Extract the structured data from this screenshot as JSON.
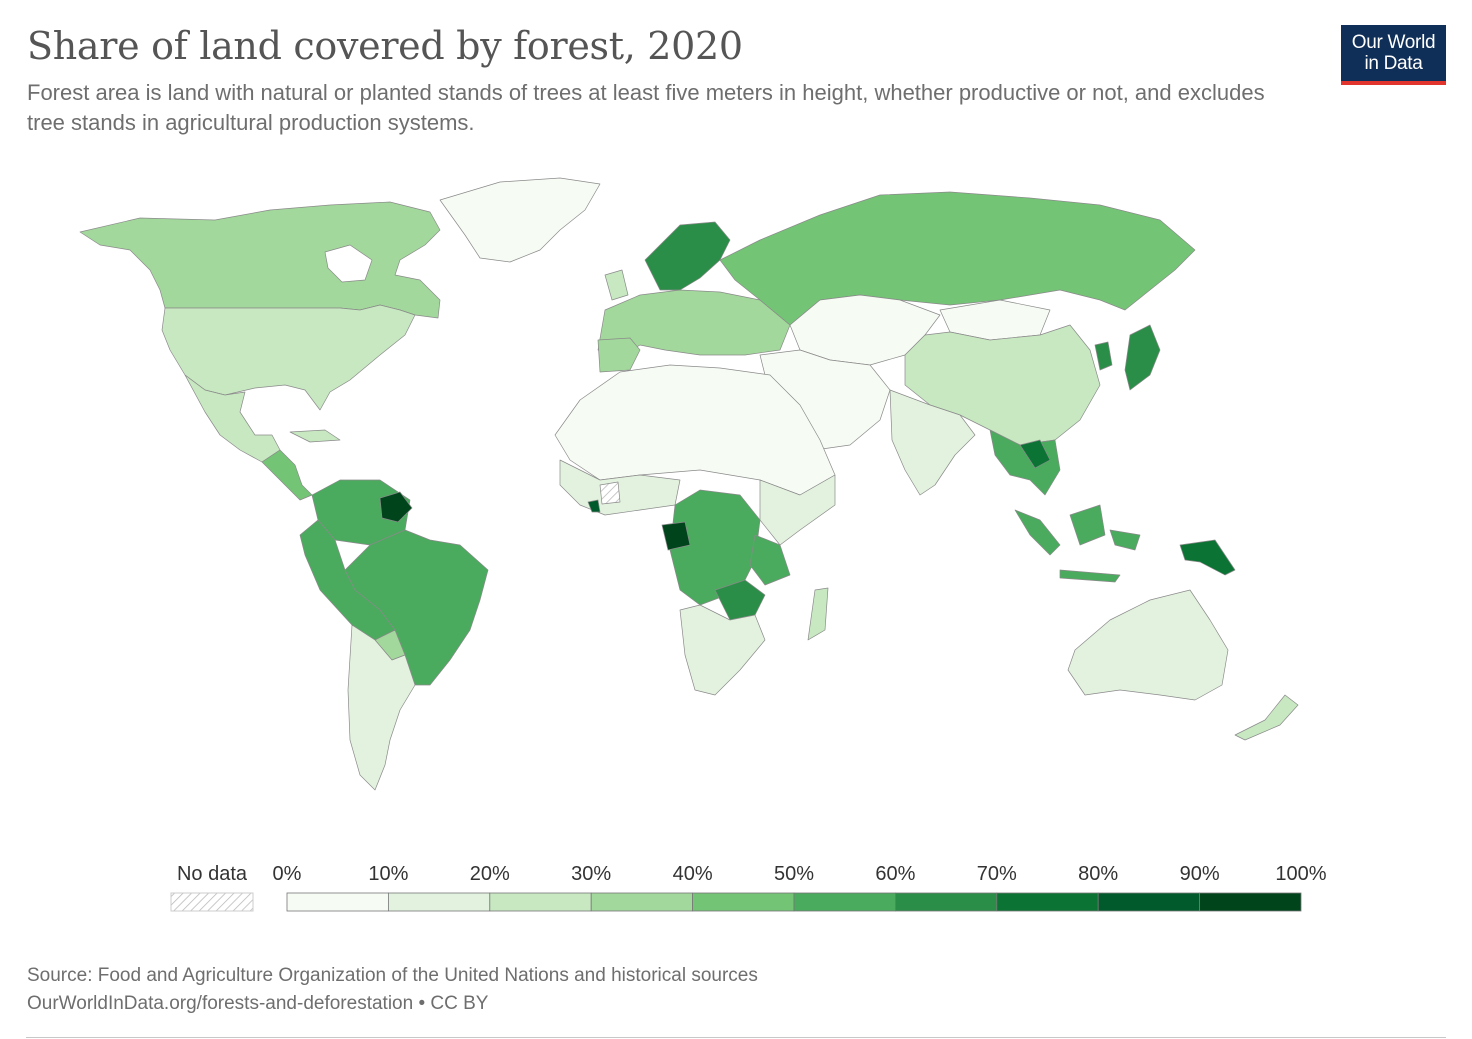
{
  "header": {
    "title": "Share of land covered by forest, 2020",
    "subtitle": "Forest area is land with natural or planted stands of trees at least five meters in height, whether productive or not, and excludes tree stands in agricultural production systems.",
    "logo_line1": "Our World",
    "logo_line2": "in Data"
  },
  "legend": {
    "no_data_label": "No data",
    "ticks": [
      "0%",
      "10%",
      "20%",
      "30%",
      "40%",
      "50%",
      "60%",
      "70%",
      "80%",
      "90%",
      "100%"
    ],
    "bin_colors": [
      "#f6fbf4",
      "#e3f2df",
      "#c7e8c1",
      "#a2d89b",
      "#74c476",
      "#4aab5e",
      "#2b8e48",
      "#0b7434",
      "#005a2b",
      "#00441b"
    ]
  },
  "footer": {
    "source": "Source: Food and Agriculture Organization of the United Nations and historical sources",
    "link": "OurWorldInData.org/forests-and-deforestation • CC BY"
  },
  "map_data": {
    "metric": "Share of land covered by forest",
    "year": 2020,
    "colors": {
      "bin_0_10": "#f6fbf4",
      "bin_10_20": "#e3f2df",
      "bin_20_30": "#c7e8c1",
      "bin_30_40": "#a2d89b",
      "bin_40_50": "#74c476",
      "bin_50_60": "#4aab5e",
      "bin_60_70": "#2b8e48",
      "bin_70_80": "#0b7434",
      "bin_80_90": "#005a2b",
      "bin_90_100": "#00441b"
    }
  }
}
